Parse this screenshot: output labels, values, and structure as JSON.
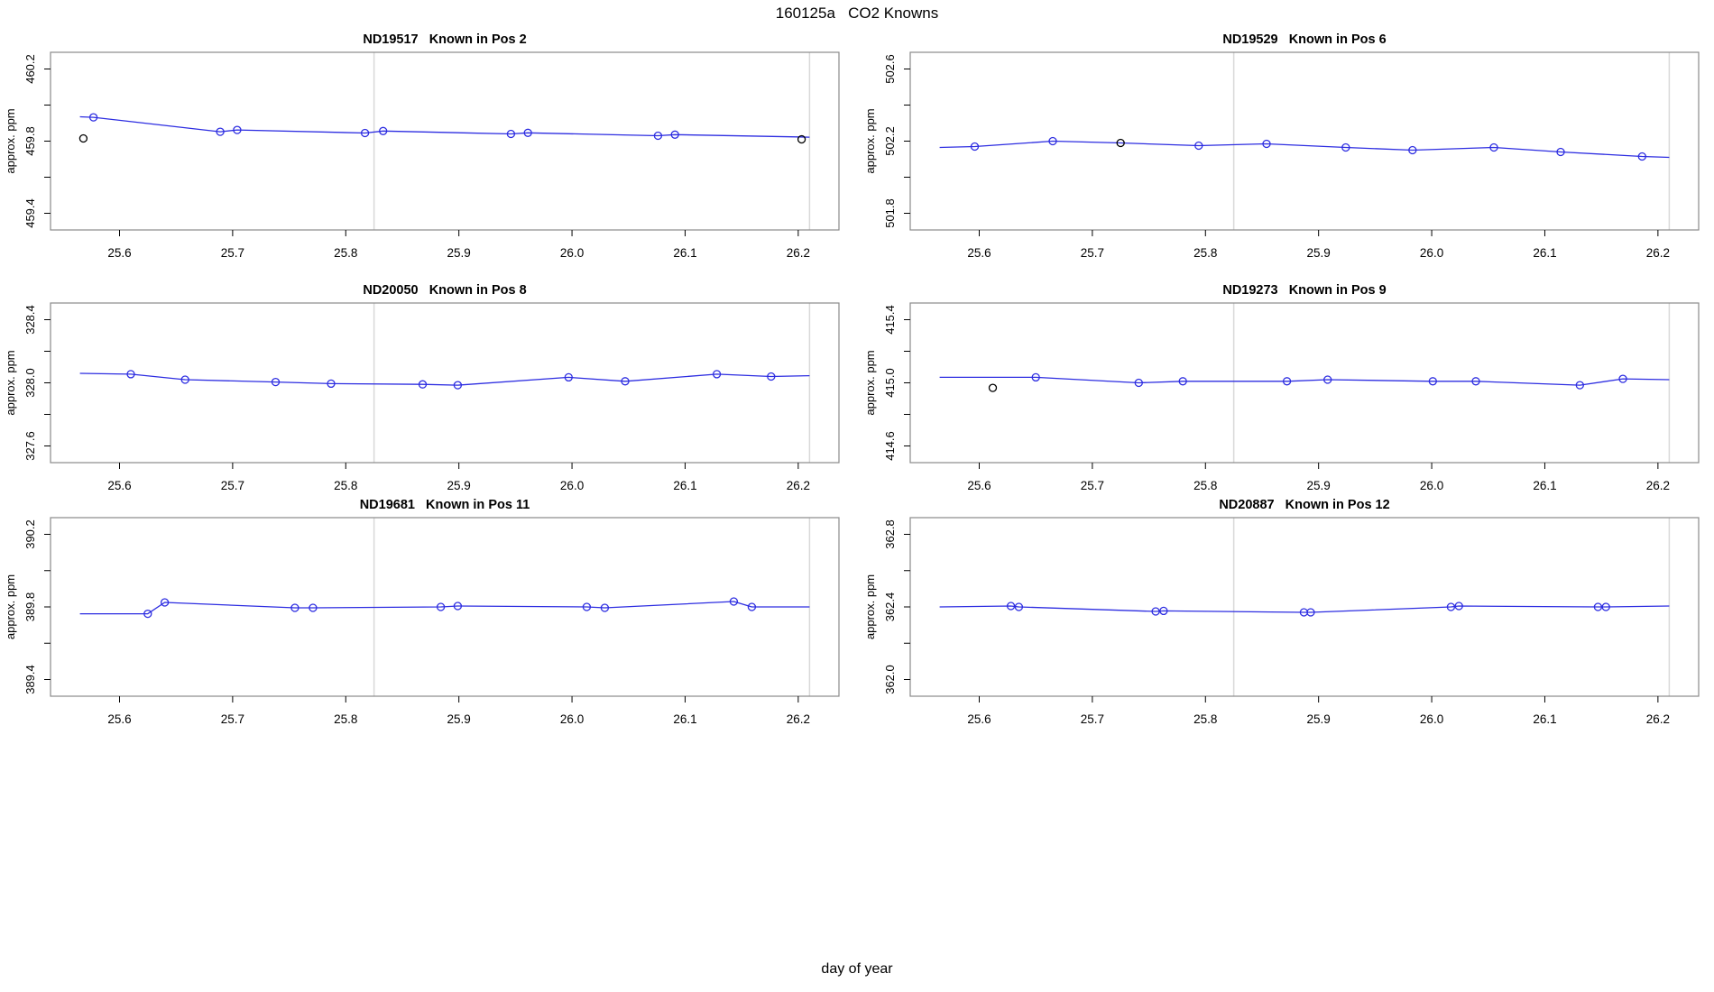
{
  "page": {
    "title": "160125a   CO2 Knowns",
    "outer_xlabel": "day of year"
  },
  "colors": {
    "series_line": "#2D2DE1",
    "series_point": "#2D2DE1",
    "flag_point": "#000000",
    "vline": "#D9D9D9",
    "box_border": "#8A8A8A",
    "tick": "#000000"
  },
  "axis": {
    "xlim": [
      25.539,
      26.236
    ],
    "xticks": [
      25.6,
      25.7,
      25.8,
      25.9,
      26.0,
      26.1,
      26.2
    ],
    "xtick_labels": [
      "25.6",
      "25.7",
      "25.8",
      "25.9",
      "26.0",
      "26.1",
      "26.2"
    ],
    "vlines": [
      25.825,
      26.21
    ],
    "ylabel": "approx. ppm"
  },
  "chart_data": [
    {
      "type": "line",
      "title": "ND19517   Known in Pos 2",
      "sample_id": "ND19517",
      "position": "Known in Pos 2",
      "ylabel": "approx. ppm",
      "y_center": 459.8,
      "ytick_values": [
        459.4,
        459.6,
        459.8,
        460.0,
        460.2
      ],
      "ytick_labels": [
        "459.4",
        "459.8",
        "460.2"
      ],
      "line": [
        [
          25.565,
          459.935
        ],
        [
          25.577,
          459.932
        ],
        [
          25.689,
          459.852
        ],
        [
          25.704,
          459.862
        ],
        [
          25.817,
          459.845
        ],
        [
          25.833,
          459.856
        ],
        [
          25.946,
          459.84
        ],
        [
          25.961,
          459.846
        ],
        [
          26.076,
          459.83
        ],
        [
          26.091,
          459.836
        ],
        [
          26.21,
          459.822
        ]
      ],
      "points": [
        [
          25.577,
          459.932
        ],
        [
          25.689,
          459.852
        ],
        [
          25.704,
          459.862
        ],
        [
          25.817,
          459.845
        ],
        [
          25.833,
          459.856
        ],
        [
          25.946,
          459.84
        ],
        [
          25.961,
          459.846
        ],
        [
          26.076,
          459.83
        ],
        [
          26.091,
          459.836
        ]
      ],
      "flagged_points": [
        [
          25.568,
          459.815
        ],
        [
          26.203,
          459.81
        ]
      ]
    },
    {
      "type": "line",
      "title": "ND19529   Known in Pos 6",
      "sample_id": "ND19529",
      "position": "Known in Pos 6",
      "ylabel": "approx. ppm",
      "y_center": 502.2,
      "ytick_values": [
        501.8,
        502.0,
        502.2,
        502.4,
        502.6
      ],
      "ytick_labels": [
        "501.8",
        "502.2",
        "502.6"
      ],
      "line": [
        [
          25.565,
          502.165
        ],
        [
          25.596,
          502.17
        ],
        [
          25.665,
          502.2
        ],
        [
          25.725,
          502.19
        ],
        [
          25.794,
          502.175
        ],
        [
          25.854,
          502.185
        ],
        [
          25.924,
          502.165
        ],
        [
          25.983,
          502.15
        ],
        [
          26.055,
          502.165
        ],
        [
          26.114,
          502.14
        ],
        [
          26.186,
          502.115
        ],
        [
          26.21,
          502.11
        ]
      ],
      "points": [
        [
          25.596,
          502.17
        ],
        [
          25.665,
          502.2
        ],
        [
          25.794,
          502.175
        ],
        [
          25.854,
          502.185
        ],
        [
          25.924,
          502.165
        ],
        [
          25.983,
          502.15
        ],
        [
          26.055,
          502.165
        ],
        [
          26.114,
          502.14
        ],
        [
          26.186,
          502.115
        ]
      ],
      "flagged_points": [
        [
          25.725,
          502.19
        ]
      ]
    },
    {
      "type": "line",
      "title": "ND20050   Known in Pos 8",
      "sample_id": "ND20050",
      "position": "Known in Pos 8",
      "ylabel": "approx. ppm",
      "y_center": 328.0,
      "ytick_values": [
        327.6,
        327.8,
        328.0,
        328.2,
        328.4
      ],
      "ytick_labels": [
        "327.6",
        "328.0",
        "328.4"
      ],
      "line": [
        [
          25.565,
          328.06
        ],
        [
          25.61,
          328.055
        ],
        [
          25.658,
          328.02
        ],
        [
          25.738,
          328.005
        ],
        [
          25.787,
          327.995
        ],
        [
          25.868,
          327.99
        ],
        [
          25.899,
          327.985
        ],
        [
          25.997,
          328.035
        ],
        [
          26.047,
          328.01
        ],
        [
          26.128,
          328.055
        ],
        [
          26.176,
          328.04
        ],
        [
          26.21,
          328.045
        ]
      ],
      "points": [
        [
          25.61,
          328.055
        ],
        [
          25.658,
          328.02
        ],
        [
          25.738,
          328.005
        ],
        [
          25.787,
          327.995
        ],
        [
          25.868,
          327.99
        ],
        [
          25.899,
          327.985
        ],
        [
          25.997,
          328.035
        ],
        [
          26.047,
          328.01
        ],
        [
          26.128,
          328.055
        ],
        [
          26.176,
          328.04
        ]
      ],
      "flagged_points": []
    },
    {
      "type": "line",
      "title": "ND19273   Known in Pos 9",
      "sample_id": "ND19273",
      "position": "Known in Pos 9",
      "ylabel": "approx. ppm",
      "y_center": 415.0,
      "ytick_values": [
        414.6,
        414.8,
        415.0,
        415.2,
        415.4
      ],
      "ytick_labels": [
        "414.6",
        "415.0",
        "415.4"
      ],
      "line": [
        [
          25.565,
          415.035
        ],
        [
          25.65,
          415.035
        ],
        [
          25.741,
          415.0
        ],
        [
          25.78,
          415.01
        ],
        [
          25.872,
          415.01
        ],
        [
          25.908,
          415.02
        ],
        [
          26.001,
          415.01
        ],
        [
          26.039,
          415.01
        ],
        [
          26.131,
          414.985
        ],
        [
          26.169,
          415.025
        ],
        [
          26.21,
          415.02
        ]
      ],
      "points": [
        [
          25.65,
          415.035
        ],
        [
          25.741,
          415.0
        ],
        [
          25.78,
          415.01
        ],
        [
          25.872,
          415.01
        ],
        [
          25.908,
          415.02
        ],
        [
          26.001,
          415.01
        ],
        [
          26.039,
          415.01
        ],
        [
          26.131,
          414.985
        ],
        [
          26.169,
          415.025
        ]
      ],
      "flagged_points": [
        [
          25.612,
          414.968
        ]
      ]
    },
    {
      "type": "line",
      "title": "ND19681   Known in Pos 11",
      "sample_id": "ND19681",
      "position": "Known in Pos 11",
      "ylabel": "approx. ppm",
      "y_center": 389.8,
      "ytick_values": [
        389.4,
        389.6,
        389.8,
        390.0,
        390.2
      ],
      "ytick_labels": [
        "389.4",
        "389.8",
        "390.2"
      ],
      "line": [
        [
          25.565,
          389.762
        ],
        [
          25.625,
          389.762
        ],
        [
          25.64,
          389.825
        ],
        [
          25.755,
          389.795
        ],
        [
          25.771,
          389.795
        ],
        [
          25.884,
          389.8
        ],
        [
          25.899,
          389.805
        ],
        [
          26.013,
          389.8
        ],
        [
          26.029,
          389.795
        ],
        [
          26.143,
          389.83
        ],
        [
          26.159,
          389.8
        ],
        [
          26.21,
          389.8
        ]
      ],
      "points": [
        [
          25.625,
          389.762
        ],
        [
          25.64,
          389.825
        ],
        [
          25.755,
          389.795
        ],
        [
          25.771,
          389.795
        ],
        [
          25.884,
          389.8
        ],
        [
          25.899,
          389.805
        ],
        [
          26.013,
          389.8
        ],
        [
          26.029,
          389.795
        ],
        [
          26.143,
          389.83
        ],
        [
          26.159,
          389.8
        ]
      ],
      "flagged_points": []
    },
    {
      "type": "line",
      "title": "ND20887   Known in Pos 12",
      "sample_id": "ND20887",
      "position": "Known in Pos 12",
      "ylabel": "approx. ppm",
      "y_center": 362.4,
      "ytick_values": [
        362.0,
        362.2,
        362.4,
        362.6,
        362.8
      ],
      "ytick_labels": [
        "362.0",
        "362.4",
        "362.8"
      ],
      "line": [
        [
          25.565,
          362.4
        ],
        [
          25.628,
          362.405
        ],
        [
          25.635,
          362.4
        ],
        [
          25.756,
          362.375
        ],
        [
          25.763,
          362.378
        ],
        [
          25.887,
          362.37
        ],
        [
          25.893,
          362.37
        ],
        [
          26.017,
          362.4
        ],
        [
          26.024,
          362.405
        ],
        [
          26.147,
          362.4
        ],
        [
          26.154,
          362.4
        ],
        [
          26.21,
          362.405
        ]
      ],
      "points": [
        [
          25.628,
          362.405
        ],
        [
          25.635,
          362.4
        ],
        [
          25.756,
          362.375
        ],
        [
          25.763,
          362.378
        ],
        [
          25.887,
          362.37
        ],
        [
          25.893,
          362.37
        ],
        [
          26.017,
          362.4
        ],
        [
          26.024,
          362.405
        ],
        [
          26.147,
          362.4
        ],
        [
          26.154,
          362.4
        ]
      ],
      "flagged_points": []
    }
  ]
}
